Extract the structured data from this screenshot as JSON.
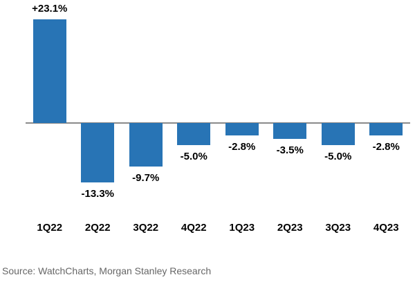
{
  "chart_data": {
    "type": "bar",
    "categories": [
      "1Q22",
      "2Q22",
      "3Q22",
      "4Q22",
      "1Q23",
      "2Q23",
      "3Q23",
      "4Q23"
    ],
    "values": [
      23.1,
      -13.3,
      -9.7,
      -5.0,
      -2.8,
      -3.5,
      -5.0,
      -2.8
    ],
    "value_labels": [
      "+23.1%",
      "-13.3%",
      "-9.7%",
      "-5.0%",
      "-2.8%",
      "-3.5%",
      "-5.0%",
      "-2.8%"
    ],
    "bar_color": "#2874B5",
    "axis_line_color": "#8A8A8A",
    "label_color": "#000000",
    "ylim": [
      -16,
      25
    ],
    "grid": false,
    "legend": false,
    "y_axis_visible": false,
    "xlabel": "",
    "ylabel": ""
  },
  "footer": {
    "source_text": "Source: WatchCharts, Morgan Stanley Research",
    "color": "#666666"
  }
}
